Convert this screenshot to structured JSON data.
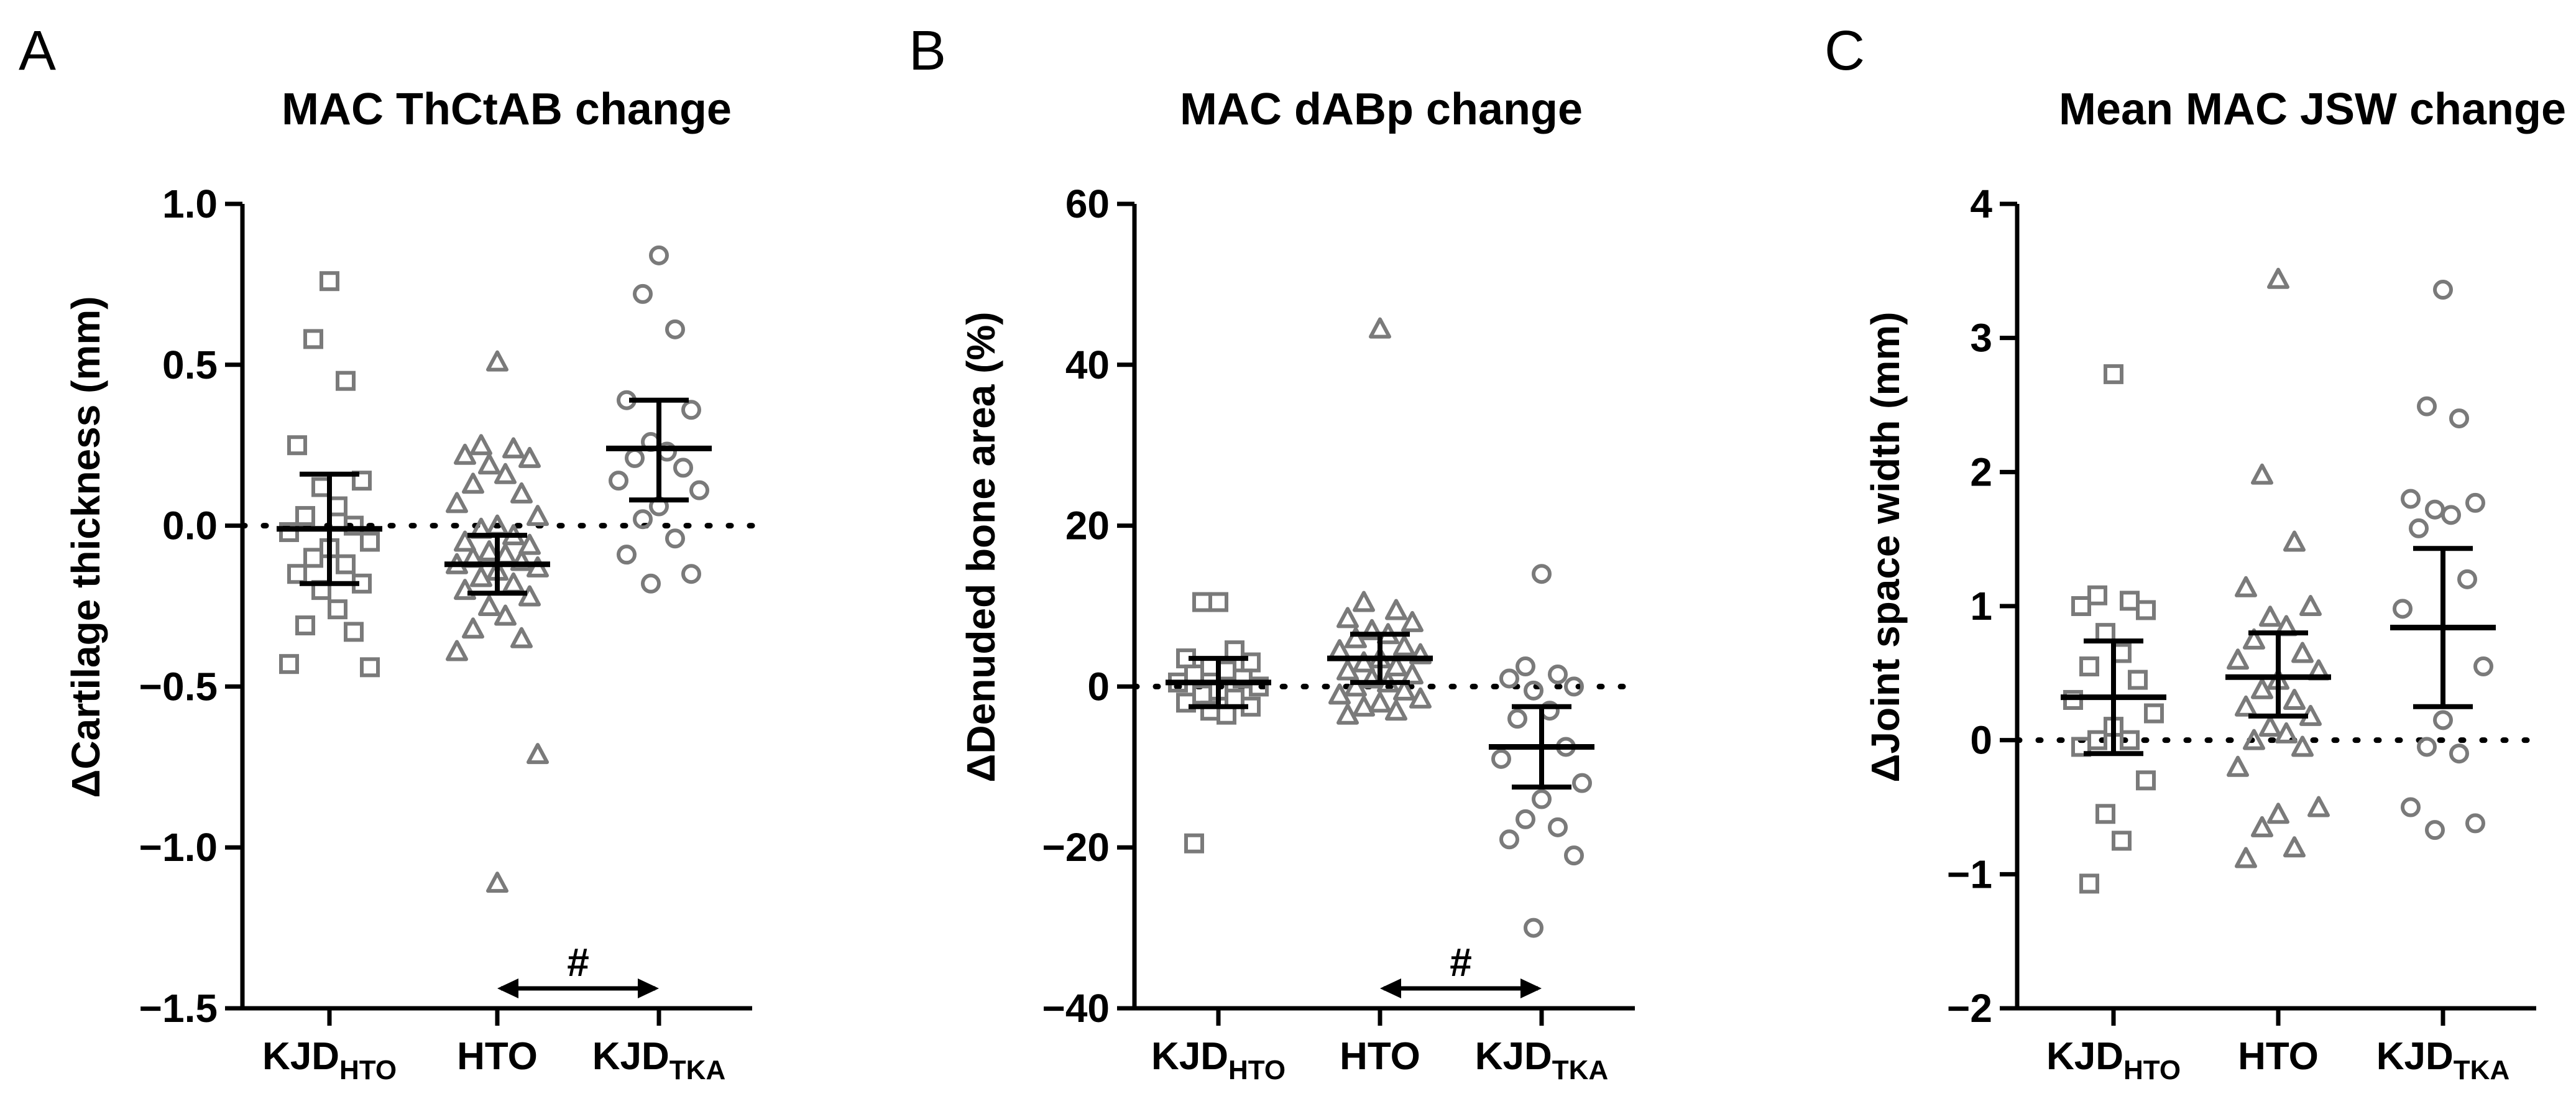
{
  "chart_data": [
    {
      "type": "scatter",
      "panel_label": "A",
      "title": "MAC ThCtAB change",
      "ylabel": "ΔCartilage thickness (mm)",
      "ylim": [
        -1.5,
        1.0
      ],
      "yticks": [
        "1.0",
        "0.5",
        "0.0",
        "−0.5",
        "−1.0",
        "−1.5"
      ],
      "ytick_values": [
        1.0,
        0.5,
        0.0,
        -0.5,
        -1.0,
        -1.5
      ],
      "reference_line": 0,
      "significance": {
        "label": "#",
        "from": 1,
        "to": 2
      },
      "groups": [
        {
          "name": "KJD",
          "sub": "HTO",
          "marker": "square",
          "points": [
            0.76,
            0.58,
            0.45,
            0.25,
            0.14,
            0.12,
            0.06,
            0.03,
            0.0,
            -0.02,
            -0.05,
            -0.07,
            -0.1,
            -0.12,
            -0.15,
            -0.18,
            -0.2,
            -0.26,
            -0.31,
            -0.33,
            -0.43,
            -0.44
          ],
          "mean": -0.01,
          "ci": [
            -0.18,
            0.16
          ]
        },
        {
          "name": "HTO",
          "sub": "",
          "marker": "triangle",
          "points": [
            0.51,
            0.25,
            0.24,
            0.22,
            0.21,
            0.19,
            0.16,
            0.13,
            0.1,
            0.07,
            0.03,
            0.0,
            -0.01,
            -0.03,
            -0.05,
            -0.06,
            -0.08,
            -0.09,
            -0.1,
            -0.11,
            -0.12,
            -0.13,
            -0.14,
            -0.16,
            -0.18,
            -0.2,
            -0.22,
            -0.25,
            -0.28,
            -0.32,
            -0.35,
            -0.39,
            -0.71,
            -1.11
          ],
          "mean": -0.12,
          "ci": [
            -0.21,
            -0.03
          ]
        },
        {
          "name": "KJD",
          "sub": "TKA",
          "marker": "circle",
          "points": [
            0.84,
            0.72,
            0.61,
            0.39,
            0.36,
            0.26,
            0.23,
            0.21,
            0.18,
            0.14,
            0.11,
            0.06,
            0.02,
            -0.04,
            -0.09,
            -0.15,
            -0.18
          ],
          "mean": 0.24,
          "ci": [
            0.08,
            0.39
          ]
        }
      ]
    },
    {
      "type": "scatter",
      "panel_label": "B",
      "title": "MAC dABp change",
      "ylabel": "ΔDenuded bone area (%)",
      "ylim": [
        -40,
        60
      ],
      "yticks": [
        "60",
        "40",
        "20",
        "0",
        "−20",
        "−40"
      ],
      "ytick_values": [
        60,
        40,
        20,
        0,
        -20,
        -40
      ],
      "reference_line": 0,
      "significance": {
        "label": "#",
        "from": 1,
        "to": 2
      },
      "groups": [
        {
          "name": "KJD",
          "sub": "HTO",
          "marker": "square",
          "points": [
            10.5,
            10.5,
            4.5,
            3.5,
            3.0,
            2.5,
            2.0,
            1.5,
            1.0,
            0.5,
            0.0,
            -0.5,
            -1.0,
            -1.5,
            -2.0,
            -2.5,
            -3.0,
            -3.5,
            -19.5
          ],
          "mean": 0.5,
          "ci": [
            -2.5,
            3.5
          ]
        },
        {
          "name": "HTO",
          "sub": "",
          "marker": "triangle",
          "points": [
            44.5,
            10.5,
            9.5,
            8.5,
            8.0,
            7.0,
            6.5,
            6.0,
            5.0,
            4.5,
            4.0,
            3.5,
            3.0,
            2.5,
            2.0,
            1.5,
            1.0,
            0.5,
            0.0,
            -0.5,
            -1.0,
            -1.5,
            -2.0,
            -2.5,
            -3.0,
            -3.5
          ],
          "mean": 3.5,
          "ci": [
            0.5,
            6.5
          ]
        },
        {
          "name": "KJD",
          "sub": "TKA",
          "marker": "circle",
          "points": [
            14.0,
            2.5,
            1.5,
            1.0,
            0.0,
            -0.5,
            -3.0,
            -4.0,
            -7.5,
            -9.0,
            -12.0,
            -14.0,
            -16.5,
            -17.5,
            -19.0,
            -21.0,
            -30.0
          ],
          "mean": -7.5,
          "ci": [
            -12.5,
            -2.5
          ]
        }
      ]
    },
    {
      "type": "scatter",
      "panel_label": "C",
      "title": "Mean MAC JSW change",
      "ylabel": "ΔJoint space width (mm)",
      "ylim": [
        -2,
        4
      ],
      "yticks": [
        "4",
        "3",
        "2",
        "1",
        "0",
        "−1",
        "−2"
      ],
      "ytick_values": [
        4,
        3,
        2,
        1,
        0,
        -1,
        -2
      ],
      "reference_line": 0,
      "significance": null,
      "groups": [
        {
          "name": "KJD",
          "sub": "HTO",
          "marker": "square",
          "points": [
            2.73,
            1.08,
            1.04,
            1.0,
            0.97,
            0.8,
            0.65,
            0.55,
            0.45,
            0.3,
            0.2,
            0.1,
            0.0,
            0.0,
            -0.05,
            -0.3,
            -0.55,
            -0.75,
            -1.07
          ],
          "mean": 0.32,
          "ci": [
            -0.1,
            0.74
          ]
        },
        {
          "name": "HTO",
          "sub": "",
          "marker": "triangle",
          "points": [
            3.44,
            1.98,
            1.48,
            1.14,
            1.0,
            0.92,
            0.85,
            0.75,
            0.65,
            0.6,
            0.52,
            0.45,
            0.38,
            0.3,
            0.25,
            0.18,
            0.1,
            0.05,
            0.0,
            -0.05,
            -0.2,
            -0.5,
            -0.55,
            -0.65,
            -0.8,
            -0.88
          ],
          "mean": 0.47,
          "ci": [
            0.18,
            0.8
          ]
        },
        {
          "name": "KJD",
          "sub": "TKA",
          "marker": "circle",
          "points": [
            3.36,
            2.49,
            2.4,
            1.8,
            1.77,
            1.72,
            1.68,
            1.58,
            1.2,
            0.98,
            0.55,
            0.15,
            -0.05,
            -0.1,
            -0.5,
            -0.62,
            -0.67
          ],
          "mean": 0.84,
          "ci": [
            0.25,
            1.43
          ]
        }
      ]
    }
  ],
  "colors": {
    "points": "#7a7a7a",
    "axis": "#000000",
    "summary": "#000000",
    "subscript": "#000000"
  }
}
